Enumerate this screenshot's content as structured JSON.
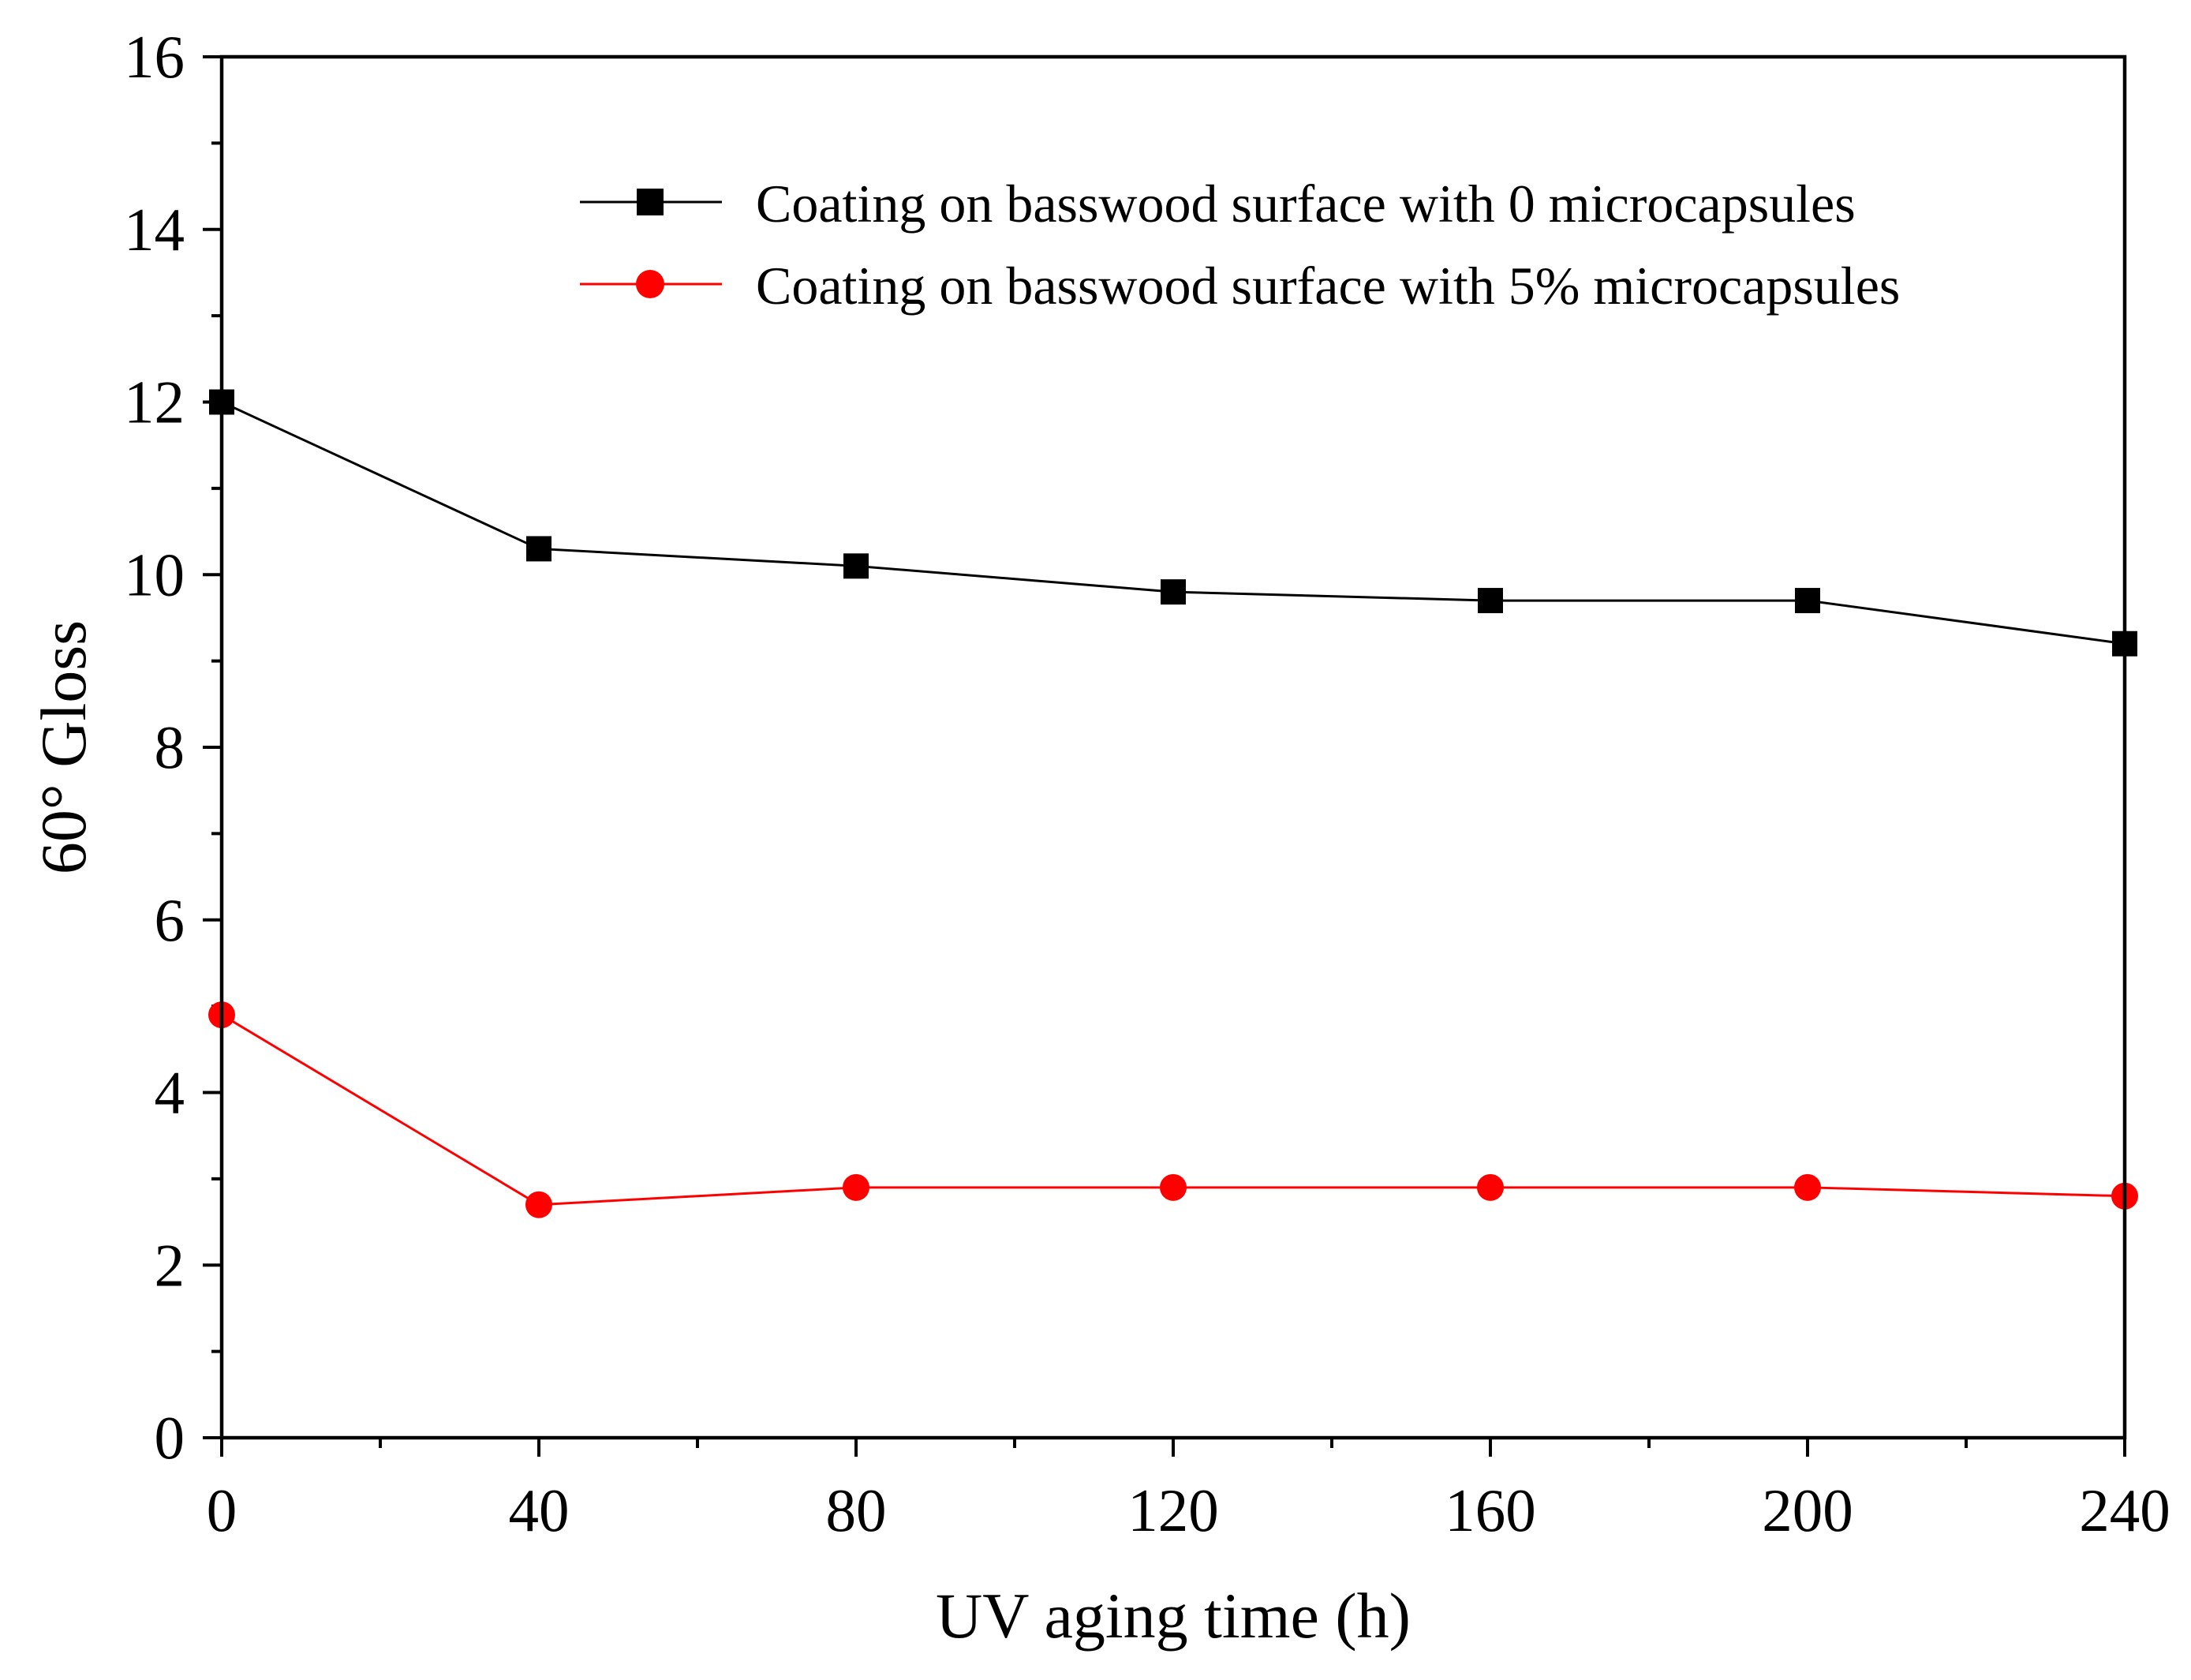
{
  "chart_data": {
    "type": "line",
    "xlabel": "UV aging time (h)",
    "ylabel": "60° Gloss",
    "xlim": [
      0,
      240
    ],
    "ylim": [
      0,
      16
    ],
    "xticks": [
      0,
      40,
      80,
      120,
      160,
      200,
      240
    ],
    "xtick_labels": [
      "0",
      "40",
      "80",
      "120",
      "160",
      "200",
      "240"
    ],
    "yticks": [
      0,
      2,
      4,
      6,
      8,
      10,
      12,
      14,
      16
    ],
    "ytick_labels": [
      "0",
      "2",
      "4",
      "6",
      "8",
      "10",
      "12",
      "14",
      "16"
    ],
    "legend_position": "top-right",
    "x": [
      0,
      40,
      80,
      120,
      160,
      200,
      240
    ],
    "series": [
      {
        "name": "Coating on basswood surface with 0 microcapsules",
        "color": "#000000",
        "marker": "square",
        "values": [
          12.0,
          10.3,
          10.1,
          9.8,
          9.7,
          9.7,
          9.2
        ]
      },
      {
        "name": "Coating on basswood surface with 5% microcapsules",
        "color": "#ff0000",
        "marker": "circle",
        "values": [
          4.9,
          2.7,
          2.9,
          2.9,
          2.9,
          2.9,
          2.8
        ]
      }
    ]
  }
}
